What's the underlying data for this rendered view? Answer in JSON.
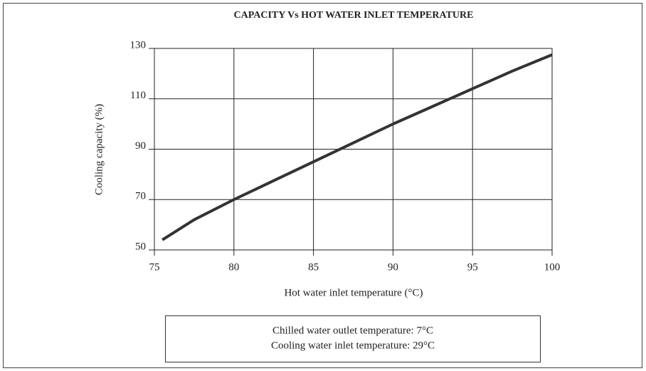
{
  "chart_data": {
    "type": "line",
    "title": "CAPACITY Vs HOT WATER INLET TEMPERATURE",
    "x_label": "Hot water inlet temperature (°C)",
    "y_label": "Cooling capacity (%)",
    "x": [
      75.5,
      77.5,
      80,
      82.5,
      85,
      87.5,
      90,
      92.5,
      95,
      97.5,
      100
    ],
    "values": [
      54,
      62,
      70,
      77.5,
      85,
      92.5,
      100,
      107,
      114,
      121,
      127.5
    ],
    "color": "#333333",
    "xlim": [
      75,
      100
    ],
    "xticks": [
      75,
      80,
      85,
      90,
      95,
      100
    ],
    "ylim": [
      50,
      130
    ],
    "yticks": [
      50,
      70,
      90,
      110,
      130
    ],
    "grid": true,
    "notes": [
      "Chilled water outlet temperature: 7°C",
      "Cooling water inlet temperature: 29°C"
    ]
  }
}
